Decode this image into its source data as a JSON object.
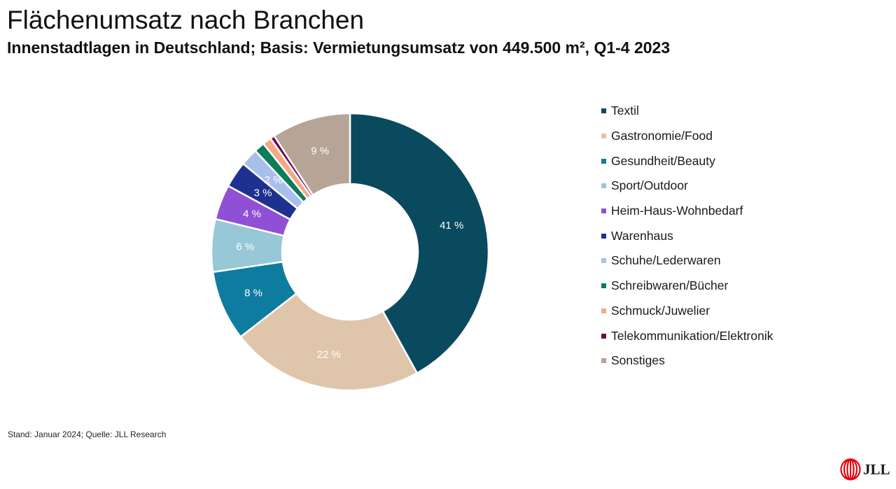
{
  "title": "Flächenumsatz nach Branchen",
  "subtitle": "Innenstadtlagen in Deutschland; Basis: Vermietungsumsatz von 449.500 m², Q1-4 2023",
  "footnote": "Stand: Januar 2024; Quelle: JLL Research",
  "logo": {
    "text": "JLL",
    "icon": "jll-logo-icon",
    "color": "#e30613"
  },
  "chart_data": {
    "type": "pie",
    "variant": "donut",
    "title": "Flächenumsatz nach Branchen",
    "subtitle": "Innenstadtlagen in Deutschland; Basis: Vermietungsumsatz von 449.500 m², Q1-4 2023",
    "unit": "%",
    "legend_position": "right",
    "slices": [
      {
        "name": "Textil",
        "value": 41,
        "label": "41 %",
        "color": "#0a4a5e"
      },
      {
        "name": "Gastronomie/Food",
        "value": 22,
        "label": "22 %",
        "color": "#dfc5aa"
      },
      {
        "name": "Gesundheit/Beauty",
        "value": 8,
        "label": "8 %",
        "color": "#0e7c9e"
      },
      {
        "name": "Sport/Outdoor",
        "value": 6,
        "label": "6 %",
        "color": "#96c8d7"
      },
      {
        "name": "Heim-Haus-Wohnbedarf",
        "value": 4,
        "label": "4 %",
        "color": "#9050d6"
      },
      {
        "name": "Warenhaus",
        "value": 3,
        "label": "3 %",
        "color": "#1e3191"
      },
      {
        "name": "Schuhe/Lederwaren",
        "value": 2,
        "label": "2 %",
        "color": "#a9bfeb"
      },
      {
        "name": "Schreibwaren/Bücher",
        "value": 1.2,
        "label": "",
        "color": "#0b7d5a"
      },
      {
        "name": "Schmuck/Juwelier",
        "value": 1,
        "label": "",
        "color": "#f4a985"
      },
      {
        "name": "Telekommunikation/Elektronik",
        "value": 0.5,
        "label": "",
        "color": "#6e0b4e"
      },
      {
        "name": "Sonstiges",
        "value": 9,
        "label": "9 %",
        "color": "#b6a496"
      }
    ]
  }
}
